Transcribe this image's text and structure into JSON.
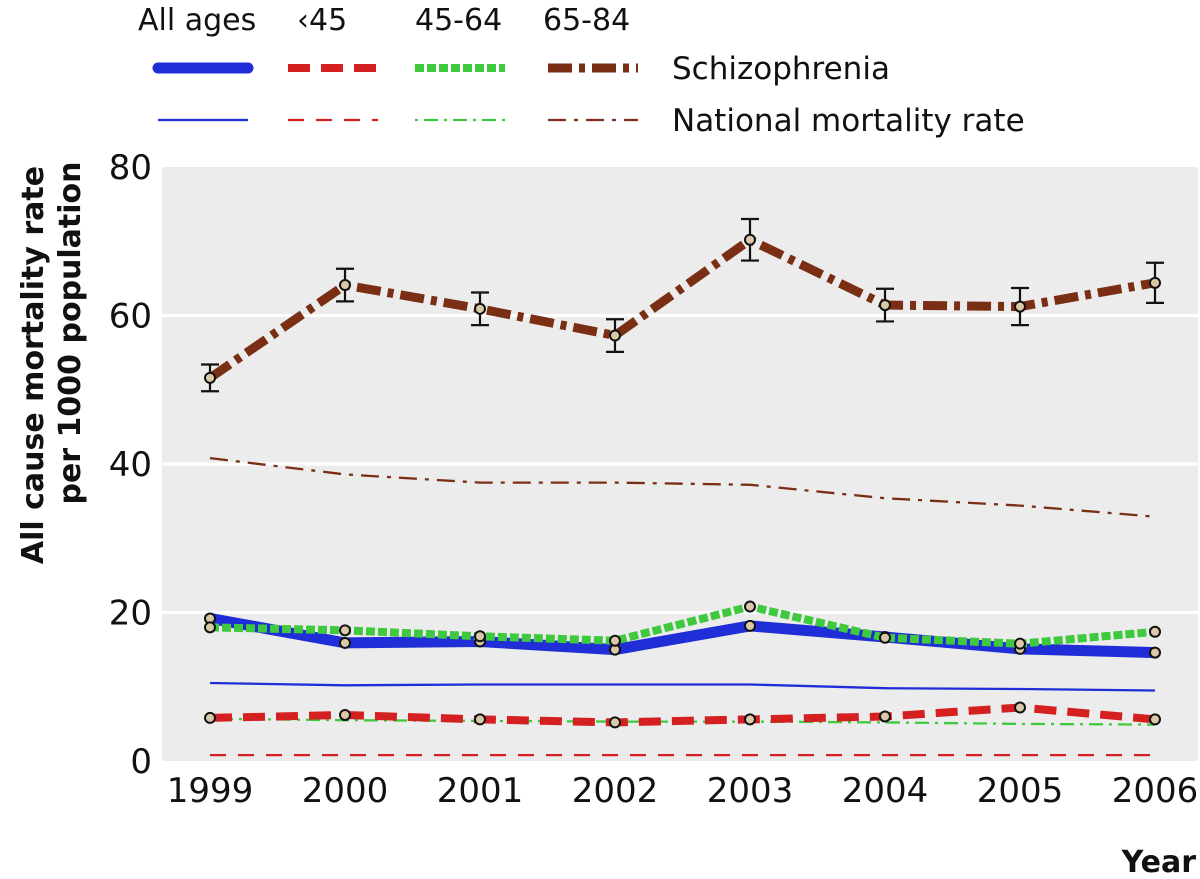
{
  "chart_data": {
    "type": "line",
    "xlabel": "Year",
    "ylabel_lines": [
      "All cause mortality rate",
      "per 1000 population"
    ],
    "x": [
      "1999",
      "2000",
      "2001",
      "2002",
      "2003",
      "2004",
      "2005",
      "2006"
    ],
    "ylim": [
      0,
      80
    ],
    "yticks": [
      "0",
      "20",
      "40",
      "60",
      "80"
    ],
    "grid": "horizontal",
    "legend": {
      "placement": "top",
      "group_headers": [
        "All ages",
        "‹45",
        "45-64",
        "65-84"
      ],
      "row_labels": [
        "Schizophrenia",
        "National mortality rate"
      ]
    },
    "series": [
      {
        "group": "All ages",
        "kind": "Schizophrenia",
        "color": "#1f2ed6",
        "values": [
          19.2,
          15.9,
          16.1,
          15.0,
          18.2,
          16.7,
          15.1,
          14.6
        ],
        "markers": true
      },
      {
        "group": "‹45",
        "kind": "Schizophrenia",
        "color": "#d42020",
        "values": [
          5.8,
          6.2,
          5.6,
          5.2,
          5.6,
          6.0,
          7.2,
          5.6
        ],
        "markers": true
      },
      {
        "group": "45-64",
        "kind": "Schizophrenia",
        "color": "#3fc93f",
        "values": [
          18.0,
          17.6,
          16.8,
          16.2,
          20.8,
          16.6,
          15.8,
          17.4
        ],
        "markers": true
      },
      {
        "group": "65-84",
        "kind": "Schizophrenia",
        "color": "#7a2e14",
        "values": [
          51.6,
          64.1,
          60.9,
          57.3,
          70.2,
          61.4,
          61.2,
          64.4
        ],
        "markers": true,
        "error": [
          1.8,
          2.2,
          2.2,
          2.2,
          2.8,
          2.2,
          2.5,
          2.7
        ]
      },
      {
        "group": "All ages",
        "kind": "National mortality rate",
        "color": "#1f2ed6",
        "values": [
          10.5,
          10.2,
          10.3,
          10.3,
          10.3,
          9.8,
          9.7,
          9.5
        ],
        "markers": false
      },
      {
        "group": "‹45",
        "kind": "National mortality rate",
        "color": "#d42020",
        "values": [
          0.8,
          0.8,
          0.8,
          0.8,
          0.8,
          0.8,
          0.8,
          0.8
        ],
        "markers": false
      },
      {
        "group": "45-64",
        "kind": "National mortality rate",
        "color": "#3fc93f",
        "values": [
          5.7,
          5.5,
          5.4,
          5.3,
          5.3,
          5.2,
          5.0,
          4.9
        ],
        "markers": false
      },
      {
        "group": "65-84",
        "kind": "National mortality rate",
        "color": "#7a2e14",
        "values": [
          40.8,
          38.6,
          37.5,
          37.5,
          37.2,
          35.4,
          34.4,
          32.9
        ],
        "markers": false
      }
    ]
  }
}
